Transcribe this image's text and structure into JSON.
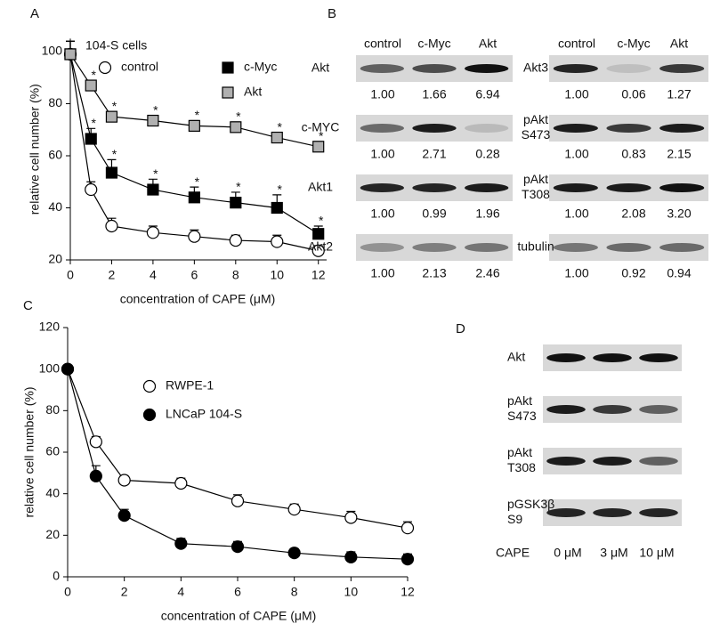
{
  "panel_labels": [
    "A",
    "B",
    "C",
    "D"
  ],
  "chart_data": [
    {
      "type": "line",
      "annotation": "104-S cells",
      "xlabel": "concentration of CAPE (μM)",
      "ylabel": "relative cell number (%)",
      "x": [
        0,
        1,
        2,
        4,
        6,
        8,
        10,
        12
      ],
      "xlim": [
        0,
        12.4
      ],
      "xticks": [
        0,
        2,
        4,
        6,
        8,
        10,
        12
      ],
      "ylim": [
        20,
        105
      ],
      "yticks": [
        20,
        40,
        60,
        80,
        100
      ],
      "legend": "upper right",
      "series": [
        {
          "name": "control",
          "color": "#ffffff",
          "marker": "circle",
          "values": [
            99,
            47,
            33,
            30.5,
            29,
            27.5,
            27,
            23.5
          ],
          "errors": [
            5,
            3,
            3,
            2.5,
            2.5,
            2,
            2.5,
            2
          ],
          "significance": [
            null,
            null,
            null,
            null,
            null,
            null,
            null,
            null
          ]
        },
        {
          "name": "c-Myc",
          "color": "#000000",
          "marker": "square",
          "values": [
            99,
            66.5,
            53.5,
            47,
            44,
            42,
            40,
            30
          ],
          "errors": [
            5,
            4,
            5,
            4,
            4,
            4,
            5,
            3
          ],
          "significance": [
            null,
            "*",
            "*",
            "*",
            "*",
            "*",
            "*",
            "*"
          ]
        },
        {
          "name": "Akt",
          "color": "#b0b0b0",
          "marker": "square",
          "values": [
            99,
            87,
            75,
            73.5,
            71.5,
            71,
            67,
            63.5
          ],
          "errors": [
            5,
            2,
            2,
            2,
            2,
            2,
            2,
            2
          ],
          "significance": [
            null,
            "*",
            "*",
            "*",
            "*",
            "*",
            "*",
            "*"
          ]
        }
      ]
    },
    {
      "type": "line",
      "xlabel": "concentration of CAPE (μM)",
      "ylabel": "relative cell number (%)",
      "x": [
        0,
        1,
        2,
        4,
        6,
        8,
        10,
        12
      ],
      "xlim": [
        0,
        12
      ],
      "xticks": [
        0,
        2,
        4,
        6,
        8,
        10,
        12
      ],
      "ylim": [
        0,
        120
      ],
      "yticks": [
        0,
        20,
        40,
        60,
        80,
        100,
        120
      ],
      "legend": "upper center",
      "series": [
        {
          "name": "RWPE-1",
          "color": "#ffffff",
          "marker": "circle",
          "values": [
            100,
            65,
            46.5,
            45,
            36.5,
            32.5,
            28.5,
            23.5
          ],
          "errors": [
            1,
            2.5,
            2,
            2.5,
            3,
            2.5,
            3,
            3
          ]
        },
        {
          "name": "LNCaP 104-S",
          "color": "#000000",
          "marker": "circle",
          "values": [
            100,
            48.5,
            29.5,
            16,
            14.5,
            11.5,
            9.5,
            8.5
          ],
          "errors": [
            1,
            5,
            3,
            2.5,
            2.5,
            2,
            2.5,
            2.5
          ]
        }
      ]
    }
  ],
  "blots_b": {
    "groups": [
      {
        "columns": [
          "control",
          "c-Myc",
          "Akt"
        ],
        "rows": [
          {
            "label": [
              "Akt"
            ],
            "values": [
              "1.00",
              "1.66",
              "6.94"
            ]
          },
          {
            "label": [
              "c-MYC"
            ],
            "values": [
              "1.00",
              "2.71",
              "0.28"
            ]
          },
          {
            "label": [
              "Akt1"
            ],
            "values": [
              "1.00",
              "0.99",
              "1.96"
            ]
          },
          {
            "label": [
              "Akt2"
            ],
            "values": [
              "1.00",
              "2.13",
              "2.46"
            ]
          }
        ]
      },
      {
        "columns": [
          "control",
          "c-Myc",
          "Akt"
        ],
        "rows": [
          {
            "label": [
              "Akt3"
            ],
            "values": [
              "1.00",
              "0.06",
              "1.27"
            ]
          },
          {
            "label": [
              "pAkt",
              "S473"
            ],
            "values": [
              "1.00",
              "0.83",
              "2.15"
            ]
          },
          {
            "label": [
              "pAkt",
              "T308"
            ],
            "values": [
              "1.00",
              "2.08",
              "3.20"
            ]
          },
          {
            "label": [
              "tubulin"
            ],
            "values": [
              "1.00",
              "0.92",
              "0.94"
            ]
          }
        ]
      }
    ]
  },
  "blots_d": {
    "rows": [
      {
        "label": [
          "Akt"
        ]
      },
      {
        "label": [
          "pAkt",
          "S473"
        ]
      },
      {
        "label": [
          "pAkt",
          "T308"
        ]
      },
      {
        "label": [
          "pGSK3β",
          "S9"
        ]
      }
    ],
    "footer": [
      "CAPE",
      "0 μM",
      "3 μM",
      "10 μM"
    ]
  }
}
